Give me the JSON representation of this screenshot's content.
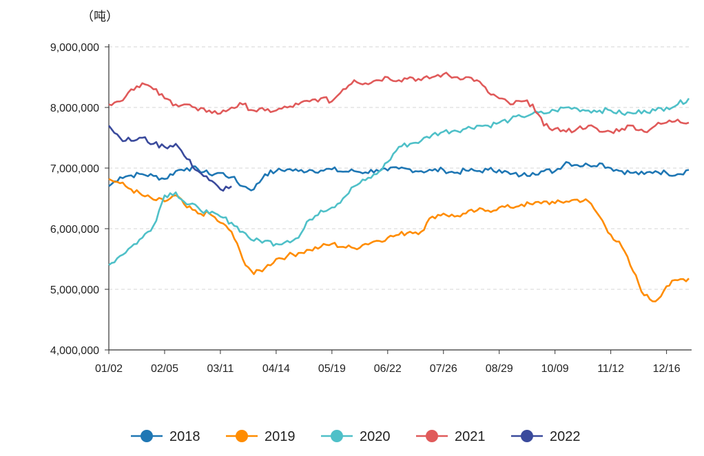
{
  "chart_data": {
    "type": "line",
    "title": "",
    "ylabel": "（吨）",
    "xlabel": "",
    "ylim": [
      4000000,
      9000000
    ],
    "yticks": [
      4000000,
      5000000,
      6000000,
      7000000,
      8000000,
      9000000
    ],
    "ytick_labels": [
      "4,000,000",
      "5,000,000",
      "6,000,000",
      "7,000,000",
      "8,000,000",
      "9,000,000"
    ],
    "xlim": [
      0,
      52
    ],
    "xticks": [
      0,
      5,
      10,
      15,
      20,
      25,
      30,
      35,
      40,
      45,
      50
    ],
    "xtick_labels": [
      "01/02",
      "02/05",
      "03/11",
      "04/14",
      "05/19",
      "06/22",
      "07/26",
      "08/29",
      "10/09",
      "11/12",
      "12/16"
    ],
    "grid": "horizontal dashed",
    "legend_position": "bottom-center",
    "series": [
      {
        "name": "2018",
        "color": "#1f77b4",
        "x": [
          0,
          1,
          2,
          3,
          4,
          5,
          6,
          7,
          8,
          9,
          10,
          11,
          12,
          13,
          14,
          15,
          16,
          17,
          18,
          19,
          20,
          21,
          22,
          23,
          24,
          25,
          26,
          27,
          28,
          29,
          30,
          31,
          32,
          33,
          34,
          35,
          36,
          37,
          38,
          39,
          40,
          41,
          42,
          43,
          44,
          45,
          46,
          47,
          48,
          49,
          50,
          51,
          52
        ],
        "y": [
          6700000,
          6850000,
          6880000,
          6900000,
          6870000,
          6820000,
          6950000,
          7000000,
          6980000,
          6900000,
          6920000,
          6850000,
          6700000,
          6650000,
          6900000,
          6950000,
          6980000,
          6950000,
          6970000,
          6960000,
          6980000,
          6940000,
          6950000,
          6930000,
          6970000,
          6960000,
          6990000,
          6980000,
          6950000,
          6960000,
          6970000,
          6920000,
          6960000,
          6950000,
          6970000,
          6970000,
          6900000,
          6880000,
          6920000,
          6950000,
          6950000,
          7100000,
          7050000,
          7050000,
          7080000,
          7000000,
          6950000,
          6920000,
          6900000,
          6950000,
          6920000,
          6900000,
          6970000
        ]
      },
      {
        "name": "2019",
        "color": "#ff8c00",
        "x": [
          0,
          1,
          2,
          3,
          4,
          5,
          6,
          7,
          8,
          9,
          10,
          11,
          12,
          13,
          14,
          15,
          16,
          17,
          18,
          19,
          20,
          21,
          22,
          23,
          24,
          25,
          26,
          27,
          28,
          29,
          30,
          31,
          32,
          33,
          34,
          35,
          36,
          37,
          38,
          39,
          40,
          41,
          42,
          43,
          44,
          45,
          46,
          47,
          48,
          49,
          50,
          51,
          52
        ],
        "y": [
          6820000,
          6750000,
          6650000,
          6550000,
          6480000,
          6450000,
          6550000,
          6350000,
          6250000,
          6250000,
          6100000,
          5950000,
          5500000,
          5250000,
          5350000,
          5500000,
          5550000,
          5600000,
          5650000,
          5700000,
          5750000,
          5700000,
          5680000,
          5750000,
          5800000,
          5850000,
          5900000,
          5950000,
          5950000,
          6200000,
          6250000,
          6200000,
          6250000,
          6300000,
          6300000,
          6350000,
          6350000,
          6400000,
          6400000,
          6450000,
          6420000,
          6450000,
          6480000,
          6450000,
          6200000,
          5900000,
          5700000,
          5300000,
          4900000,
          4800000,
          5050000,
          5150000,
          5180000
        ]
      },
      {
        "name": "2020",
        "color": "#4fc0c8",
        "x": [
          0,
          1,
          2,
          3,
          4,
          5,
          6,
          7,
          8,
          9,
          10,
          11,
          12,
          13,
          14,
          15,
          16,
          17,
          18,
          19,
          20,
          21,
          22,
          23,
          24,
          25,
          26,
          27,
          28,
          29,
          30,
          31,
          32,
          33,
          34,
          35,
          36,
          37,
          38,
          39,
          40,
          41,
          42,
          43,
          44,
          45,
          46,
          47,
          48,
          49,
          50,
          51,
          52
        ],
        "y": [
          5400000,
          5550000,
          5700000,
          5850000,
          6050000,
          6550000,
          6600000,
          6400000,
          6350000,
          6250000,
          6200000,
          6100000,
          5950000,
          5800000,
          5800000,
          5750000,
          5800000,
          5850000,
          6150000,
          6300000,
          6350000,
          6500000,
          6700000,
          6800000,
          6900000,
          7100000,
          7350000,
          7400000,
          7450000,
          7550000,
          7600000,
          7620000,
          7650000,
          7700000,
          7700000,
          7750000,
          7800000,
          7850000,
          7900000,
          7900000,
          7950000,
          8000000,
          7980000,
          7950000,
          7950000,
          7950000,
          7900000,
          7900000,
          7950000,
          7950000,
          8000000,
          8050000,
          8150000
        ]
      },
      {
        "name": "2021",
        "color": "#e05a5a",
        "x": [
          0,
          1,
          2,
          3,
          4,
          5,
          6,
          7,
          8,
          9,
          10,
          11,
          12,
          13,
          14,
          15,
          16,
          17,
          18,
          19,
          20,
          21,
          22,
          23,
          24,
          25,
          26,
          27,
          28,
          29,
          30,
          31,
          32,
          33,
          34,
          35,
          36,
          37,
          38,
          39,
          40,
          41,
          42,
          43,
          44,
          45,
          46,
          47,
          48,
          49,
          50,
          51,
          52
        ],
        "y": [
          8050000,
          8100000,
          8300000,
          8400000,
          8300000,
          8150000,
          8050000,
          8050000,
          7950000,
          7950000,
          7900000,
          8000000,
          8050000,
          7950000,
          7950000,
          7950000,
          8000000,
          8050000,
          8100000,
          8150000,
          8100000,
          8300000,
          8450000,
          8400000,
          8450000,
          8500000,
          8450000,
          8500000,
          8450000,
          8500000,
          8550000,
          8500000,
          8500000,
          8450000,
          8250000,
          8150000,
          8050000,
          8100000,
          8050000,
          7700000,
          7650000,
          7600000,
          7650000,
          7700000,
          7600000,
          7600000,
          7650000,
          7700000,
          7600000,
          7700000,
          7750000,
          7800000,
          7750000
        ]
      },
      {
        "name": "2022",
        "color": "#3a4a9c",
        "x": [
          0,
          1,
          2,
          3,
          4,
          5,
          6,
          7,
          8,
          9,
          10,
          11
        ],
        "y": [
          7700000,
          7500000,
          7450000,
          7500000,
          7400000,
          7350000,
          7400000,
          7150000,
          6950000,
          6800000,
          6650000,
          6700000
        ]
      }
    ]
  }
}
